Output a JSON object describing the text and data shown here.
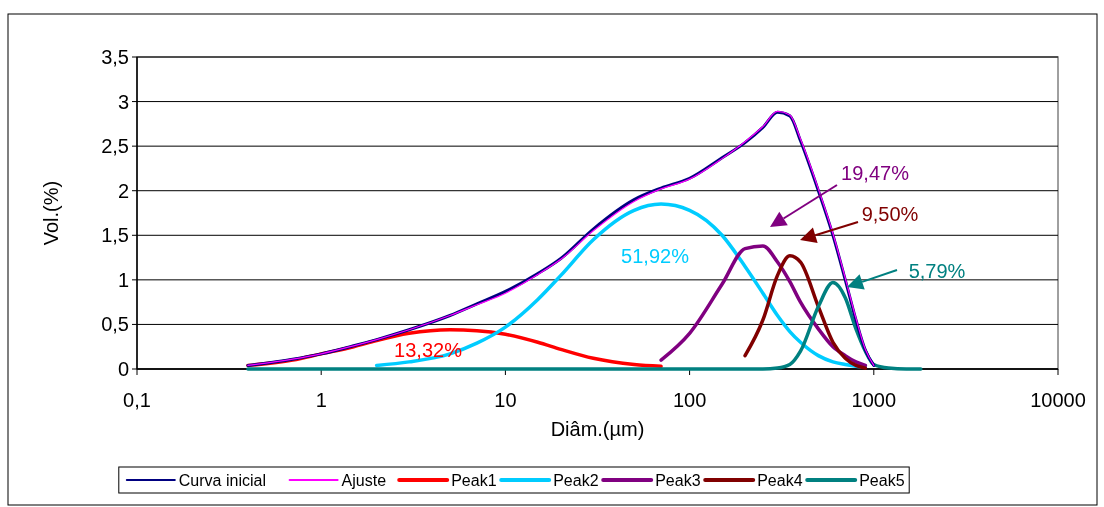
{
  "chart_data": {
    "type": "line",
    "xlabel": "Diâm.(µm)",
    "ylabel": "Vol.(%)",
    "log": "x",
    "x": [
      0.4,
      0.7,
      1,
      1.5,
      2,
      3,
      5,
      7,
      10,
      15,
      20,
      30,
      50,
      70,
      100,
      150,
      200,
      250,
      300,
      350,
      400,
      500,
      600,
      700,
      800,
      900,
      1000,
      1200,
      1500,
      1800
    ],
    "series": [
      {
        "name": "Curva inicial",
        "color": "#000080",
        "values": [
          0.04,
          0.11,
          0.17,
          0.26,
          0.33,
          0.44,
          0.6,
          0.73,
          0.87,
          1.07,
          1.24,
          1.57,
          1.9,
          2.03,
          2.14,
          2.37,
          2.54,
          2.71,
          2.88,
          2.84,
          2.56,
          2.0,
          1.5,
          1.0,
          0.55,
          0.21,
          0.04,
          null,
          null,
          null
        ]
      },
      {
        "name": "Ajuste",
        "color": "#ff00ff",
        "values": [
          0.04,
          0.11,
          0.17,
          0.26,
          0.33,
          0.44,
          0.6,
          0.72,
          0.85,
          1.06,
          1.23,
          1.55,
          1.88,
          2.02,
          2.13,
          2.36,
          2.55,
          2.72,
          2.89,
          2.85,
          2.58,
          2.02,
          1.52,
          1.02,
          0.57,
          0.22,
          0.04,
          null,
          null,
          null
        ]
      },
      {
        "name": "Peak1",
        "color": "#ff0000",
        "values": [
          0.04,
          0.1,
          0.17,
          0.25,
          0.32,
          0.4,
          0.44,
          0.43,
          0.39,
          0.3,
          0.22,
          0.12,
          0.05,
          0.03,
          null,
          null,
          null,
          null,
          null,
          null,
          null,
          null,
          null,
          null,
          null,
          null,
          null,
          null,
          null,
          null
        ]
      },
      {
        "name": "Peak2",
        "color": "#00ccff",
        "values": [
          null,
          null,
          null,
          null,
          0.04,
          0.08,
          0.17,
          0.29,
          0.47,
          0.78,
          1.05,
          1.45,
          1.78,
          1.85,
          1.78,
          1.5,
          1.15,
          0.85,
          0.6,
          0.42,
          0.3,
          0.15,
          0.08,
          0.05,
          0.03,
          0.02,
          null,
          null,
          null,
          null
        ]
      },
      {
        "name": "Peak3",
        "color": "#800080",
        "values": [
          null,
          null,
          null,
          null,
          null,
          null,
          null,
          null,
          null,
          null,
          null,
          null,
          null,
          0.1,
          0.4,
          0.95,
          1.35,
          1.38,
          1.2,
          0.98,
          0.75,
          0.45,
          0.25,
          0.15,
          0.08,
          0.04,
          null,
          null,
          null,
          null
        ]
      },
      {
        "name": "Peak4",
        "color": "#800000",
        "values": [
          null,
          null,
          null,
          null,
          null,
          null,
          null,
          null,
          null,
          null,
          null,
          null,
          null,
          null,
          null,
          null,
          0.15,
          0.55,
          1.05,
          1.27,
          1.2,
          0.7,
          0.3,
          0.12,
          0.04,
          0.01,
          null,
          null,
          null,
          null
        ]
      },
      {
        "name": "Peak5",
        "color": "#008080",
        "values": [
          0,
          0,
          0,
          0,
          0,
          0,
          0,
          0,
          0,
          0,
          0,
          0,
          0,
          0,
          0,
          0,
          0,
          0,
          0.01,
          0.05,
          0.2,
          0.7,
          0.97,
          0.8,
          0.45,
          0.2,
          0.05,
          0.01,
          0,
          0
        ]
      }
    ],
    "annotations": [
      "13,32%",
      "51,92%",
      "19,47%",
      "9,50%",
      "5,79%"
    ],
    "xlim": [
      0.1,
      10000
    ],
    "xticks": [
      {
        "value": 0.1,
        "label": "0,1"
      },
      1,
      10,
      100,
      1000,
      10000
    ],
    "ylim": [
      0,
      3.5
    ],
    "yticks": [
      0,
      {
        "value": 0.5,
        "label": "0,5"
      },
      1,
      {
        "value": 1.5,
        "label": "1,5"
      },
      2,
      {
        "value": 2.5,
        "label": "2,5"
      },
      3,
      {
        "value": 3.5,
        "label": "3,5"
      }
    ],
    "grid": "y",
    "legend": "bottom",
    "line_style": "solid",
    "marker": "none"
  }
}
